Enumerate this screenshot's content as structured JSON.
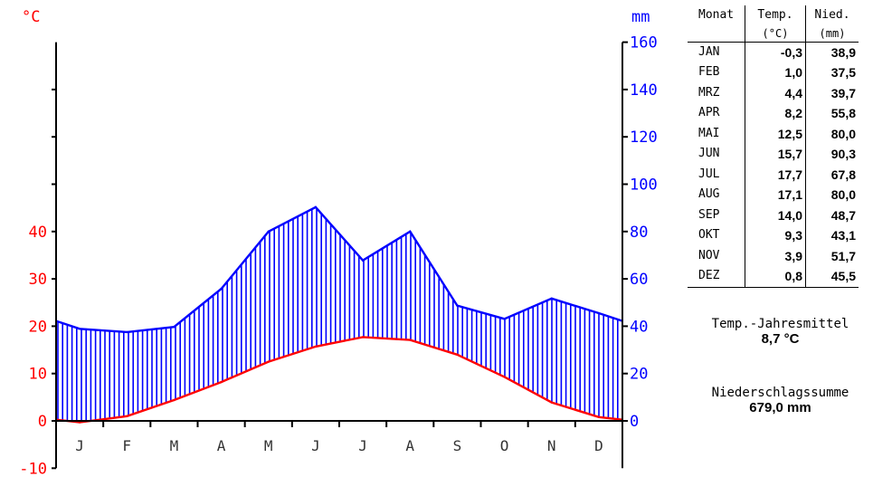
{
  "chart_data": {
    "type": "climate-diagram",
    "left_axis_unit": "°C",
    "right_axis_unit": "mm",
    "temp_ticks": [
      -10,
      0,
      10,
      20,
      30,
      40
    ],
    "precip_ticks": [
      0,
      20,
      40,
      60,
      80,
      100,
      120,
      140,
      160
    ],
    "temp_range": [
      -10,
      70
    ],
    "precip_range": [
      0,
      160
    ],
    "categories": [
      "J",
      "F",
      "M",
      "A",
      "M",
      "J",
      "J",
      "A",
      "S",
      "O",
      "N",
      "D"
    ],
    "series": [
      {
        "name": "Temp.",
        "color": "#ff0000",
        "values": [
          -0.3,
          1.0,
          4.4,
          8.2,
          12.5,
          15.7,
          17.7,
          17.1,
          14.0,
          9.3,
          3.9,
          0.8
        ]
      },
      {
        "name": "Nied.",
        "color": "#0000ff",
        "values": [
          38.9,
          37.5,
          39.7,
          55.8,
          80.0,
          90.3,
          67.8,
          80.0,
          48.7,
          43.1,
          51.7,
          45.5
        ]
      }
    ],
    "colors": {
      "temp": "#ff0000",
      "precip": "#0000ff",
      "axis": "#000000"
    }
  },
  "table": {
    "headers": {
      "month": "Monat",
      "temp": "Temp.",
      "temp_unit": "(°C)",
      "precip": "Nied.",
      "precip_unit": "(mm)"
    },
    "rows": [
      {
        "month": "JAN",
        "temp": "-0,3",
        "precip": "38,9"
      },
      {
        "month": "FEB",
        "temp": "1,0",
        "precip": "37,5"
      },
      {
        "month": "MRZ",
        "temp": "4,4",
        "precip": "39,7"
      },
      {
        "month": "APR",
        "temp": "8,2",
        "precip": "55,8"
      },
      {
        "month": "MAI",
        "temp": "12,5",
        "precip": "80,0"
      },
      {
        "month": "JUN",
        "temp": "15,7",
        "precip": "90,3"
      },
      {
        "month": "JUL",
        "temp": "17,7",
        "precip": "67,8"
      },
      {
        "month": "AUG",
        "temp": "17,1",
        "precip": "80,0"
      },
      {
        "month": "SEP",
        "temp": "14,0",
        "precip": "48,7"
      },
      {
        "month": "OKT",
        "temp": "9,3",
        "precip": "43,1"
      },
      {
        "month": "NOV",
        "temp": "3,9",
        "precip": "51,7"
      },
      {
        "month": "DEZ",
        "temp": "0,8",
        "precip": "45,5"
      }
    ]
  },
  "summary": {
    "temp_label": "Temp.-Jahresmittel",
    "temp_value": "8,7 °C",
    "precip_label": "Niederschlagssumme",
    "precip_value": "679,0 mm"
  }
}
